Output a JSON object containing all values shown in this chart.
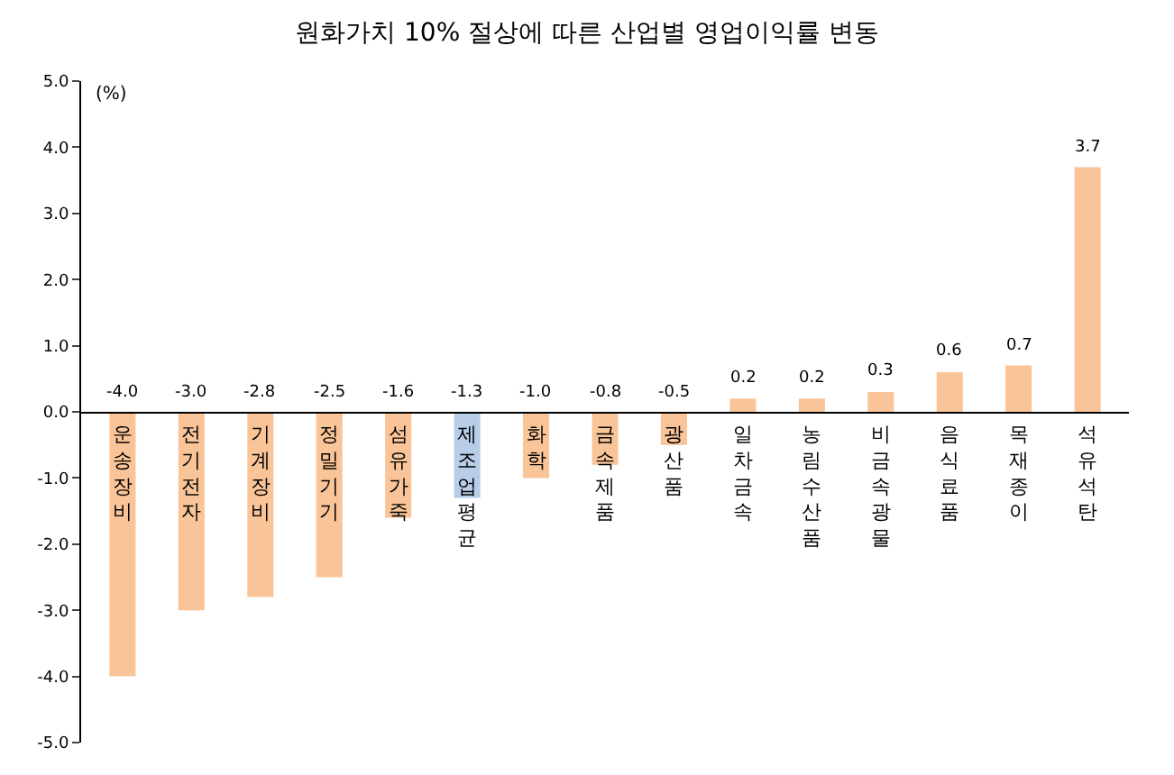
{
  "chart_data": {
    "type": "bar",
    "title": "원화가치 10% 절상에 따른 산업별 영업이익률 변동",
    "ylabel": "(%)",
    "categories": [
      "운송장비",
      "전기전자",
      "기계장비",
      "정밀기기",
      "섬유가죽",
      "제조업 평균",
      "화학",
      "금속제품",
      "광산품",
      "일차금속",
      "농림수산품",
      "비금속광물",
      "음식료품",
      "목재종이",
      "석유석탄"
    ],
    "values": [
      -4.0,
      -3.0,
      -2.8,
      -2.5,
      -1.6,
      -1.3,
      -1.0,
      -0.8,
      -0.5,
      0.2,
      0.2,
      0.3,
      0.6,
      0.7,
      3.7
    ],
    "value_labels": [
      "-4.0",
      "-3.0",
      "-2.8",
      "-2.5",
      "-1.6",
      "-1.3",
      "-1.0",
      "-0.8",
      "-0.5",
      "0.2",
      "0.2",
      "0.3",
      "0.6",
      "0.7",
      "3.7"
    ],
    "colors": [
      "#f9c497",
      "#f9c497",
      "#f9c497",
      "#f9c497",
      "#f9c497",
      "#b7cde8",
      "#f9c497",
      "#f9c497",
      "#f9c497",
      "#f9c497",
      "#f9c497",
      "#f9c497",
      "#f9c497",
      "#f9c497",
      "#f9c497"
    ],
    "ylim": [
      -5,
      5
    ],
    "yticks": [
      {
        "value": -5,
        "label": "-5.0"
      },
      {
        "value": -4,
        "label": "-4.0"
      },
      {
        "value": -3,
        "label": "-3.0"
      },
      {
        "value": -2,
        "label": "-2.0"
      },
      {
        "value": -1,
        "label": "-1.0"
      },
      {
        "value": 0,
        "label": "0.0"
      },
      {
        "value": 1,
        "label": "1.0"
      },
      {
        "value": 2,
        "label": "2.0"
      },
      {
        "value": 3,
        "label": "3.0"
      },
      {
        "value": 4,
        "label": "4.0"
      },
      {
        "value": 5,
        "label": "5.0"
      }
    ],
    "legend": false
  }
}
